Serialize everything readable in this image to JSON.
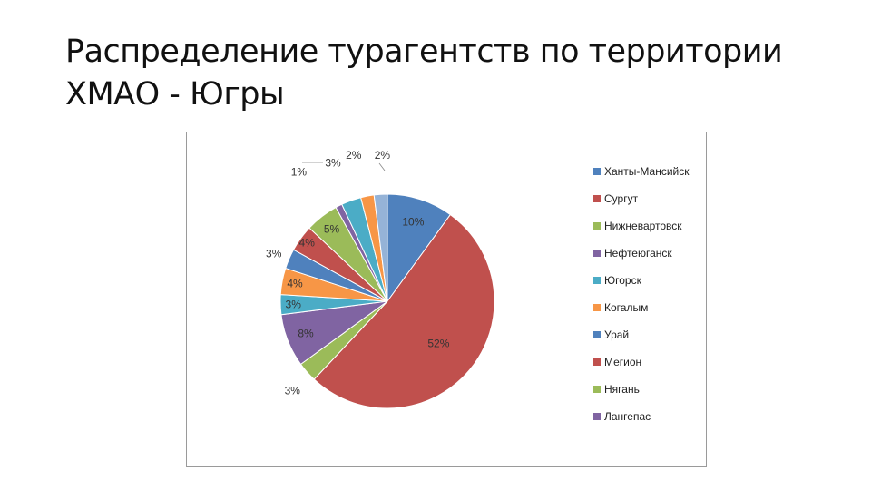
{
  "slide": {
    "title_line1": "Распределение турагентств по территории",
    "title_line2": "ХМАО - Югры"
  },
  "chart_data": {
    "type": "pie",
    "legend_position": "right",
    "slices": [
      {
        "name": "Ханты-Мансийск",
        "value": 10,
        "label": "10%",
        "color": "#4F81BD"
      },
      {
        "name": "Сургут",
        "value": 52,
        "label": "52%",
        "color": "#C0504D"
      },
      {
        "name": "Нижневартовск",
        "value": 3,
        "label": "3%",
        "color": "#9BBB59"
      },
      {
        "name": "Нефтеюганск",
        "value": 8,
        "label": "8%",
        "color": "#8064A2"
      },
      {
        "name": "Югорск",
        "value": 3,
        "label": "3%",
        "color": "#4BACC6"
      },
      {
        "name": "Когалым",
        "value": 4,
        "label": "4%",
        "color": "#F79646"
      },
      {
        "name": "Урай",
        "value": 3,
        "label": "3%",
        "color": "#4F81BD"
      },
      {
        "name": "Мегион",
        "value": 4,
        "label": "4%",
        "color": "#C0504D"
      },
      {
        "name": "Нягань",
        "value": 5,
        "label": "5%",
        "color": "#9BBB59"
      },
      {
        "name": "Лангепас",
        "value": 1,
        "label": "1%",
        "color": "#8064A2"
      },
      {
        "name": "",
        "value": 3,
        "label": "3%",
        "color": "#4BACC6"
      },
      {
        "name": "",
        "value": 2,
        "label": "2%",
        "color": "#F79646"
      },
      {
        "name": "",
        "value": 2,
        "label": "2%",
        "color": "#95B3D7"
      }
    ]
  }
}
